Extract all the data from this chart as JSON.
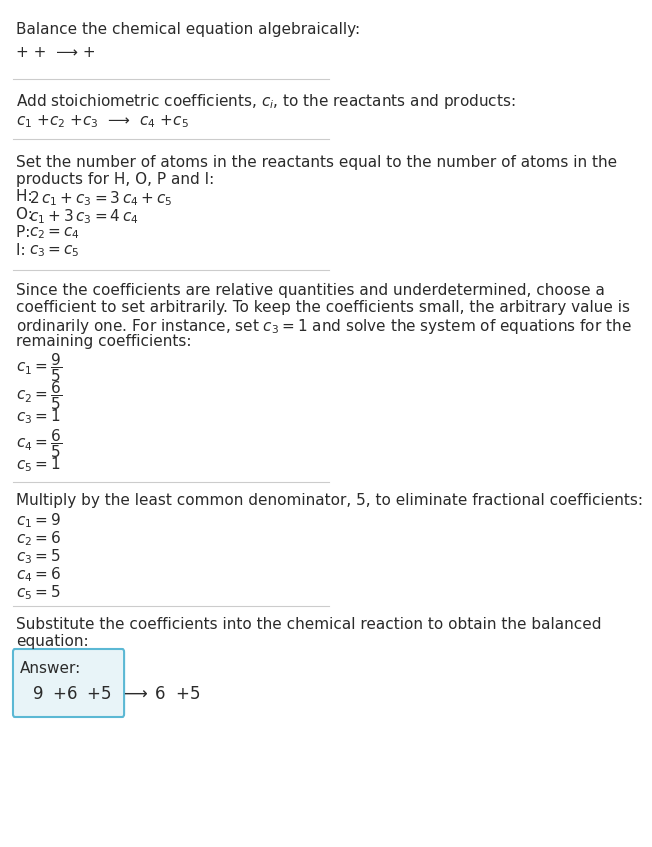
{
  "title": "Balance the chemical equation algebraically:",
  "line1": "+ +  ⟶ +",
  "section1_title": "Add stoichiometric coefficients, $c_i$, to the reactants and products:",
  "section1_eq": "$c_1$ +$c_2$ +$c_3$  ⟶  $c_4$ +$c_5$",
  "section2_title": "Set the number of atoms in the reactants equal to the number of atoms in the\nproducts for H, O, P and I:",
  "section2_lines": [
    "H: $\\;2\\,c_1+c_3=3\\,c_4+c_5$",
    "O: $\\;c_1+3\\,c_3=4\\,c_4$",
    "P: $\\;c_2=c_4$",
    "I:  $\\;c_3=c_5$"
  ],
  "section3_title": "Since the coefficients are relative quantities and underdetermined, choose a\ncoefficient to set arbitrarily. To keep the coefficients small, the arbitrary value is\nordinarily one. For instance, set $c_3 = 1$ and solve the system of equations for the\nremaining coefficients:",
  "section3_lines": [
    "$c_1=\\dfrac{9}{5}$",
    "$c_2=\\dfrac{6}{5}$",
    "$c_3=1$",
    "$c_4=\\dfrac{6}{5}$",
    "$c_5=1$"
  ],
  "section4_title": "Multiply by the least common denominator, 5, to eliminate fractional coefficients:",
  "section4_lines": [
    "$c_1=9$",
    "$c_2=6$",
    "$c_3=5$",
    "$c_4=6$",
    "$c_5=5$"
  ],
  "section5_title": "Substitute the coefficients into the chemical reaction to obtain the balanced\nequation:",
  "answer_label": "Answer:",
  "answer_eq": "$9\\;$ +$6\\;$ +$5\\;$ ⟶ $\\;6\\;$ +$5$",
  "bg_color": "#ffffff",
  "text_color": "#2b2b2b",
  "line_color": "#cccccc",
  "answer_bg": "#e8f4f8",
  "answer_border": "#5bb8d4"
}
